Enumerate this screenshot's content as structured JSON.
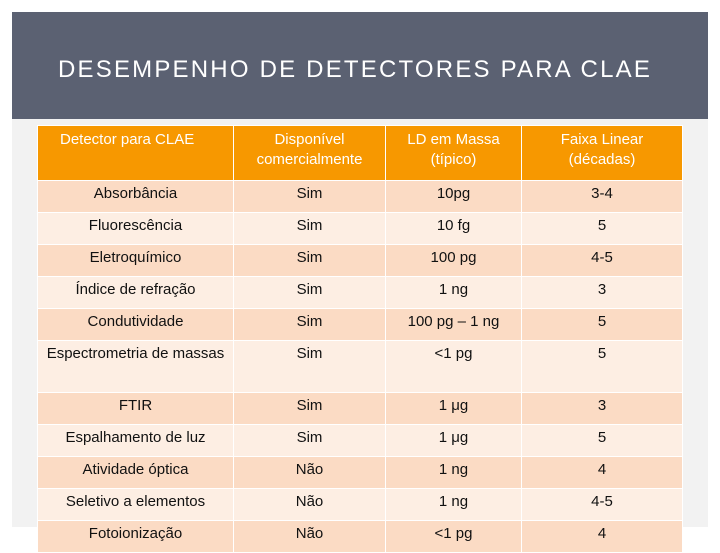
{
  "slide": {
    "title": "DESEMPENHO DE DETECTORES PARA CLAE"
  },
  "table": {
    "headers": [
      "Detector para CLAE",
      "Disponível comercialmente",
      "LD em Massa (típico)",
      "Faixa Linear (décadas)"
    ],
    "rows": [
      [
        "Absorbância",
        "Sim",
        "10pg",
        "3-4"
      ],
      [
        "Fluorescência",
        "Sim",
        "10 fg",
        "5"
      ],
      [
        "Eletroquímico",
        "Sim",
        "100 pg",
        "4-5"
      ],
      [
        "Índice de refração",
        "Sim",
        "1 ng",
        "3"
      ],
      [
        "Condutividade",
        "Sim",
        "100 pg – 1 ng",
        "5"
      ],
      [
        "Espectrometria de massas",
        "Sim",
        "<1 pg",
        "5"
      ],
      [
        "FTIR",
        "Sim",
        "1 μg",
        "3"
      ],
      [
        "Espalhamento de luz",
        "Sim",
        "1 μg",
        "5"
      ],
      [
        "Atividade óptica",
        "Não",
        "1 ng",
        "4"
      ],
      [
        "Seletivo a elementos",
        "Não",
        "1 ng",
        "4-5"
      ],
      [
        "Fotoionização",
        "Não",
        "<1 pg",
        "4"
      ]
    ]
  },
  "colors": {
    "title_bar": "#5b6172",
    "header": "#f79800",
    "row_odd": "#fbdbc4",
    "row_even": "#fdeee3"
  }
}
